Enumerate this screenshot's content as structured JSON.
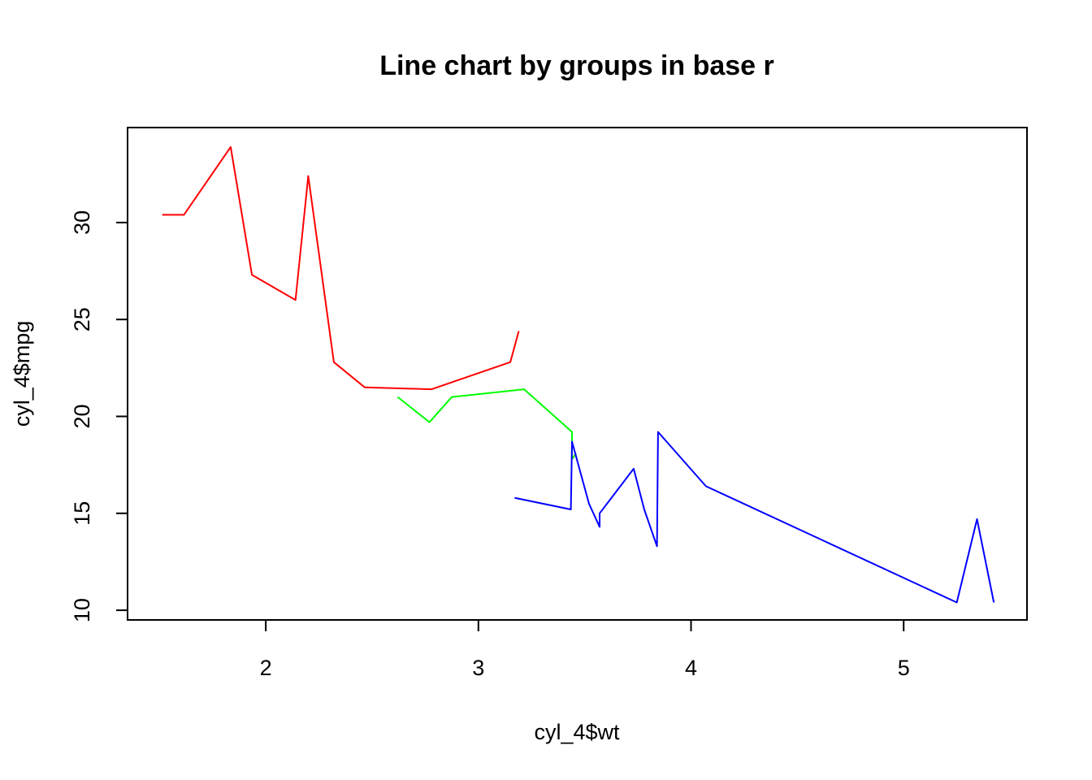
{
  "chart_data": {
    "type": "line",
    "title": "Line chart by groups in base r",
    "xlabel": "cyl_4$wt",
    "ylabel": "cyl_4$mpg",
    "xlim": [
      1.35,
      5.58
    ],
    "ylim": [
      9.5,
      34.9
    ],
    "xticks": [
      2,
      3,
      4,
      5
    ],
    "yticks": [
      10,
      15,
      20,
      25,
      30
    ],
    "grid": false,
    "legend": "none",
    "series": [
      {
        "color": "#ff0000",
        "points": [
          [
            1.513,
            30.4
          ],
          [
            1.615,
            30.4
          ],
          [
            1.835,
            33.9
          ],
          [
            1.935,
            27.3
          ],
          [
            2.14,
            26.0
          ],
          [
            2.2,
            32.4
          ],
          [
            2.32,
            22.8
          ],
          [
            2.465,
            21.5
          ],
          [
            2.78,
            21.4
          ],
          [
            3.15,
            22.8
          ],
          [
            3.19,
            24.4
          ]
        ]
      },
      {
        "color": "#00ff00",
        "points": [
          [
            2.62,
            21.0
          ],
          [
            2.77,
            19.7
          ],
          [
            2.875,
            21.0
          ],
          [
            3.215,
            21.4
          ],
          [
            3.44,
            19.2
          ],
          [
            3.44,
            17.8
          ],
          [
            3.46,
            18.1
          ]
        ]
      },
      {
        "color": "#0000ff",
        "points": [
          [
            3.17,
            15.8
          ],
          [
            3.435,
            15.2
          ],
          [
            3.44,
            18.7
          ],
          [
            3.52,
            15.5
          ],
          [
            3.57,
            14.3
          ],
          [
            3.57,
            15.0
          ],
          [
            3.73,
            17.3
          ],
          [
            3.78,
            15.2
          ],
          [
            3.84,
            13.3
          ],
          [
            3.845,
            19.2
          ],
          [
            4.07,
            16.4
          ],
          [
            5.25,
            10.4
          ],
          [
            5.345,
            14.7
          ],
          [
            5.424,
            10.4
          ]
        ]
      }
    ]
  }
}
